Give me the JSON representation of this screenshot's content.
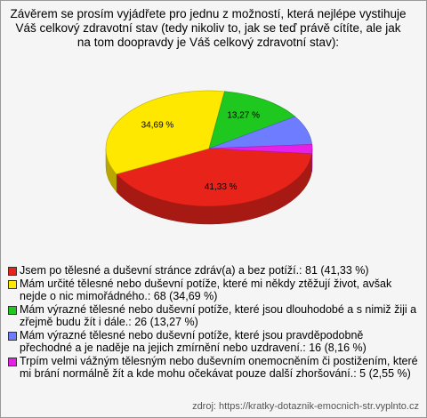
{
  "chart_data": {
    "type": "pie",
    "title": "Závěrem se prosím vyjádřete pro jednu z možností, která nejlépe vystihuje Váš celkový zdravotní stav (tedy nikoliv to, jak se teď právě cítíte, ale jak na tom doopravdy je Váš celkový zdravotní stav):",
    "categories": [
      "Jsem po tělesné a duševní stránce zdráv(a) a bez potíží.: 81 (41,33 %)",
      "Mám určité tělesné nebo duševní potíže, které mi někdy ztěžují život, avšak nejde o nic mimořádného.: 68 (34,69 %)",
      "Mám výrazné tělesné nebo duševní potíže, které jsou dlouhodobé a s nimiž žiji a zřejmě budu žít i dále.: 26 (13,27 %)",
      "Mám výrazné tělesné nebo duševní potíže, které jsou pravděpodobně přechodné a je naděje na jejich zmírnění nebo uzdravení.: 16 (8,16 %)",
      "Trpím velmi vážným tělesným nebo duševním onemocněním či postižením, které mi brání normálně žít a kde mohu očekávat pouze další zhoršování.: 5 (2,55 %)"
    ],
    "values": [
      41.33,
      34.69,
      13.27,
      8.16,
      2.55
    ],
    "value_labels": [
      "41,33 %",
      "34,69 %",
      "13,27 %",
      null,
      null
    ],
    "colors": [
      "#e8231a",
      "#ffe800",
      "#1ec81e",
      "#6e7dff",
      "#e620e6"
    ],
    "source": "zdroj: https://kratky-dotaznik-emocnich-str.vyplnto.cz"
  }
}
